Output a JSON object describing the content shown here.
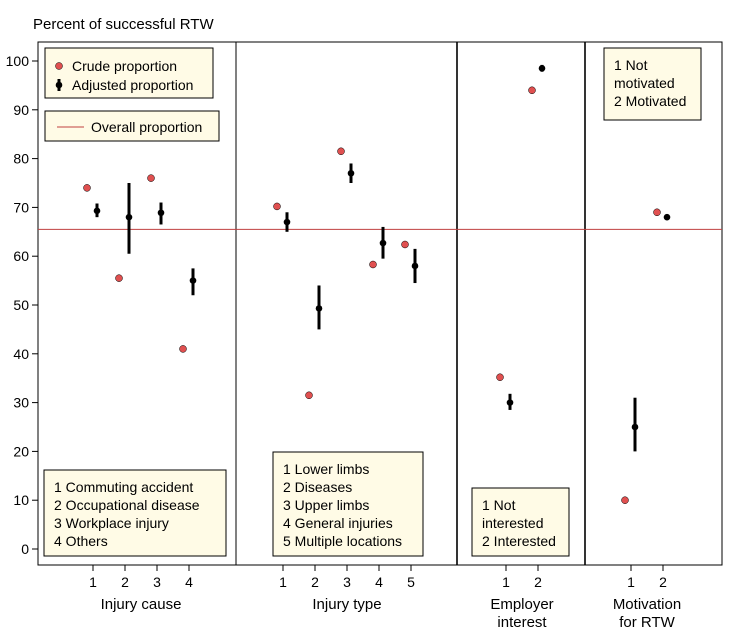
{
  "chart_data": {
    "type": "scatter",
    "title": "Percent of successful RTW",
    "ylim": [
      -3,
      104
    ],
    "yticks": [
      0,
      10,
      20,
      30,
      40,
      50,
      60,
      70,
      80,
      90,
      100
    ],
    "overall_proportion": 65.5,
    "colors": {
      "crude": "#e05050",
      "adjusted": "#000000",
      "overall": "#c04040",
      "legend_bg": "#fffbe6"
    },
    "legend": {
      "crude": "Crude proportion",
      "adjusted": "Adjusted proportion",
      "overall": "Overall proportion"
    },
    "panels": [
      {
        "axis_title_lines": [
          "Injury cause"
        ],
        "categories": [
          "1",
          "2",
          "3",
          "4"
        ],
        "crude": [
          74,
          55.5,
          76,
          41
        ],
        "adjusted": [
          69.3,
          68,
          68.9,
          55
        ],
        "ci_low": [
          68,
          60.5,
          66.5,
          52
        ],
        "ci_high": [
          70.8,
          75,
          71,
          57.5
        ],
        "key_lines": [
          "1 Commuting accident",
          "2 Occupational disease",
          "3 Workplace injury",
          "4 Others"
        ]
      },
      {
        "axis_title_lines": [
          "Injury type"
        ],
        "categories": [
          "1",
          "2",
          "3",
          "4",
          "5"
        ],
        "crude": [
          70.2,
          31.5,
          81.5,
          58.3,
          62.4
        ],
        "adjusted": [
          67,
          49.3,
          77,
          62.7,
          58
        ],
        "ci_low": [
          65,
          45,
          75,
          59.5,
          54.5
        ],
        "ci_high": [
          69,
          54,
          79,
          66,
          61.5
        ],
        "key_lines": [
          "1 Lower limbs",
          "2 Diseases",
          "3 Upper limbs",
          "4 General injuries",
          "5 Multiple locations"
        ]
      },
      {
        "axis_title_lines": [
          "Employer",
          "interest"
        ],
        "categories": [
          "1",
          "2"
        ],
        "crude": [
          35.2,
          94
        ],
        "adjusted": [
          30,
          98.5
        ],
        "ci_low": [
          28.5,
          97.8
        ],
        "ci_high": [
          31.8,
          99.2
        ],
        "key_lines": [
          "1 Not",
          "   interested",
          "2 Interested"
        ]
      },
      {
        "axis_title_lines": [
          "Motivation",
          "for RTW"
        ],
        "categories": [
          "1",
          "2"
        ],
        "crude": [
          10,
          69
        ],
        "adjusted": [
          25,
          68
        ],
        "ci_low": [
          20,
          67.5
        ],
        "ci_high": [
          31,
          68.5
        ],
        "key_lines": [
          "1 Not",
          "   motivated",
          "2 Motivated"
        ]
      }
    ]
  }
}
